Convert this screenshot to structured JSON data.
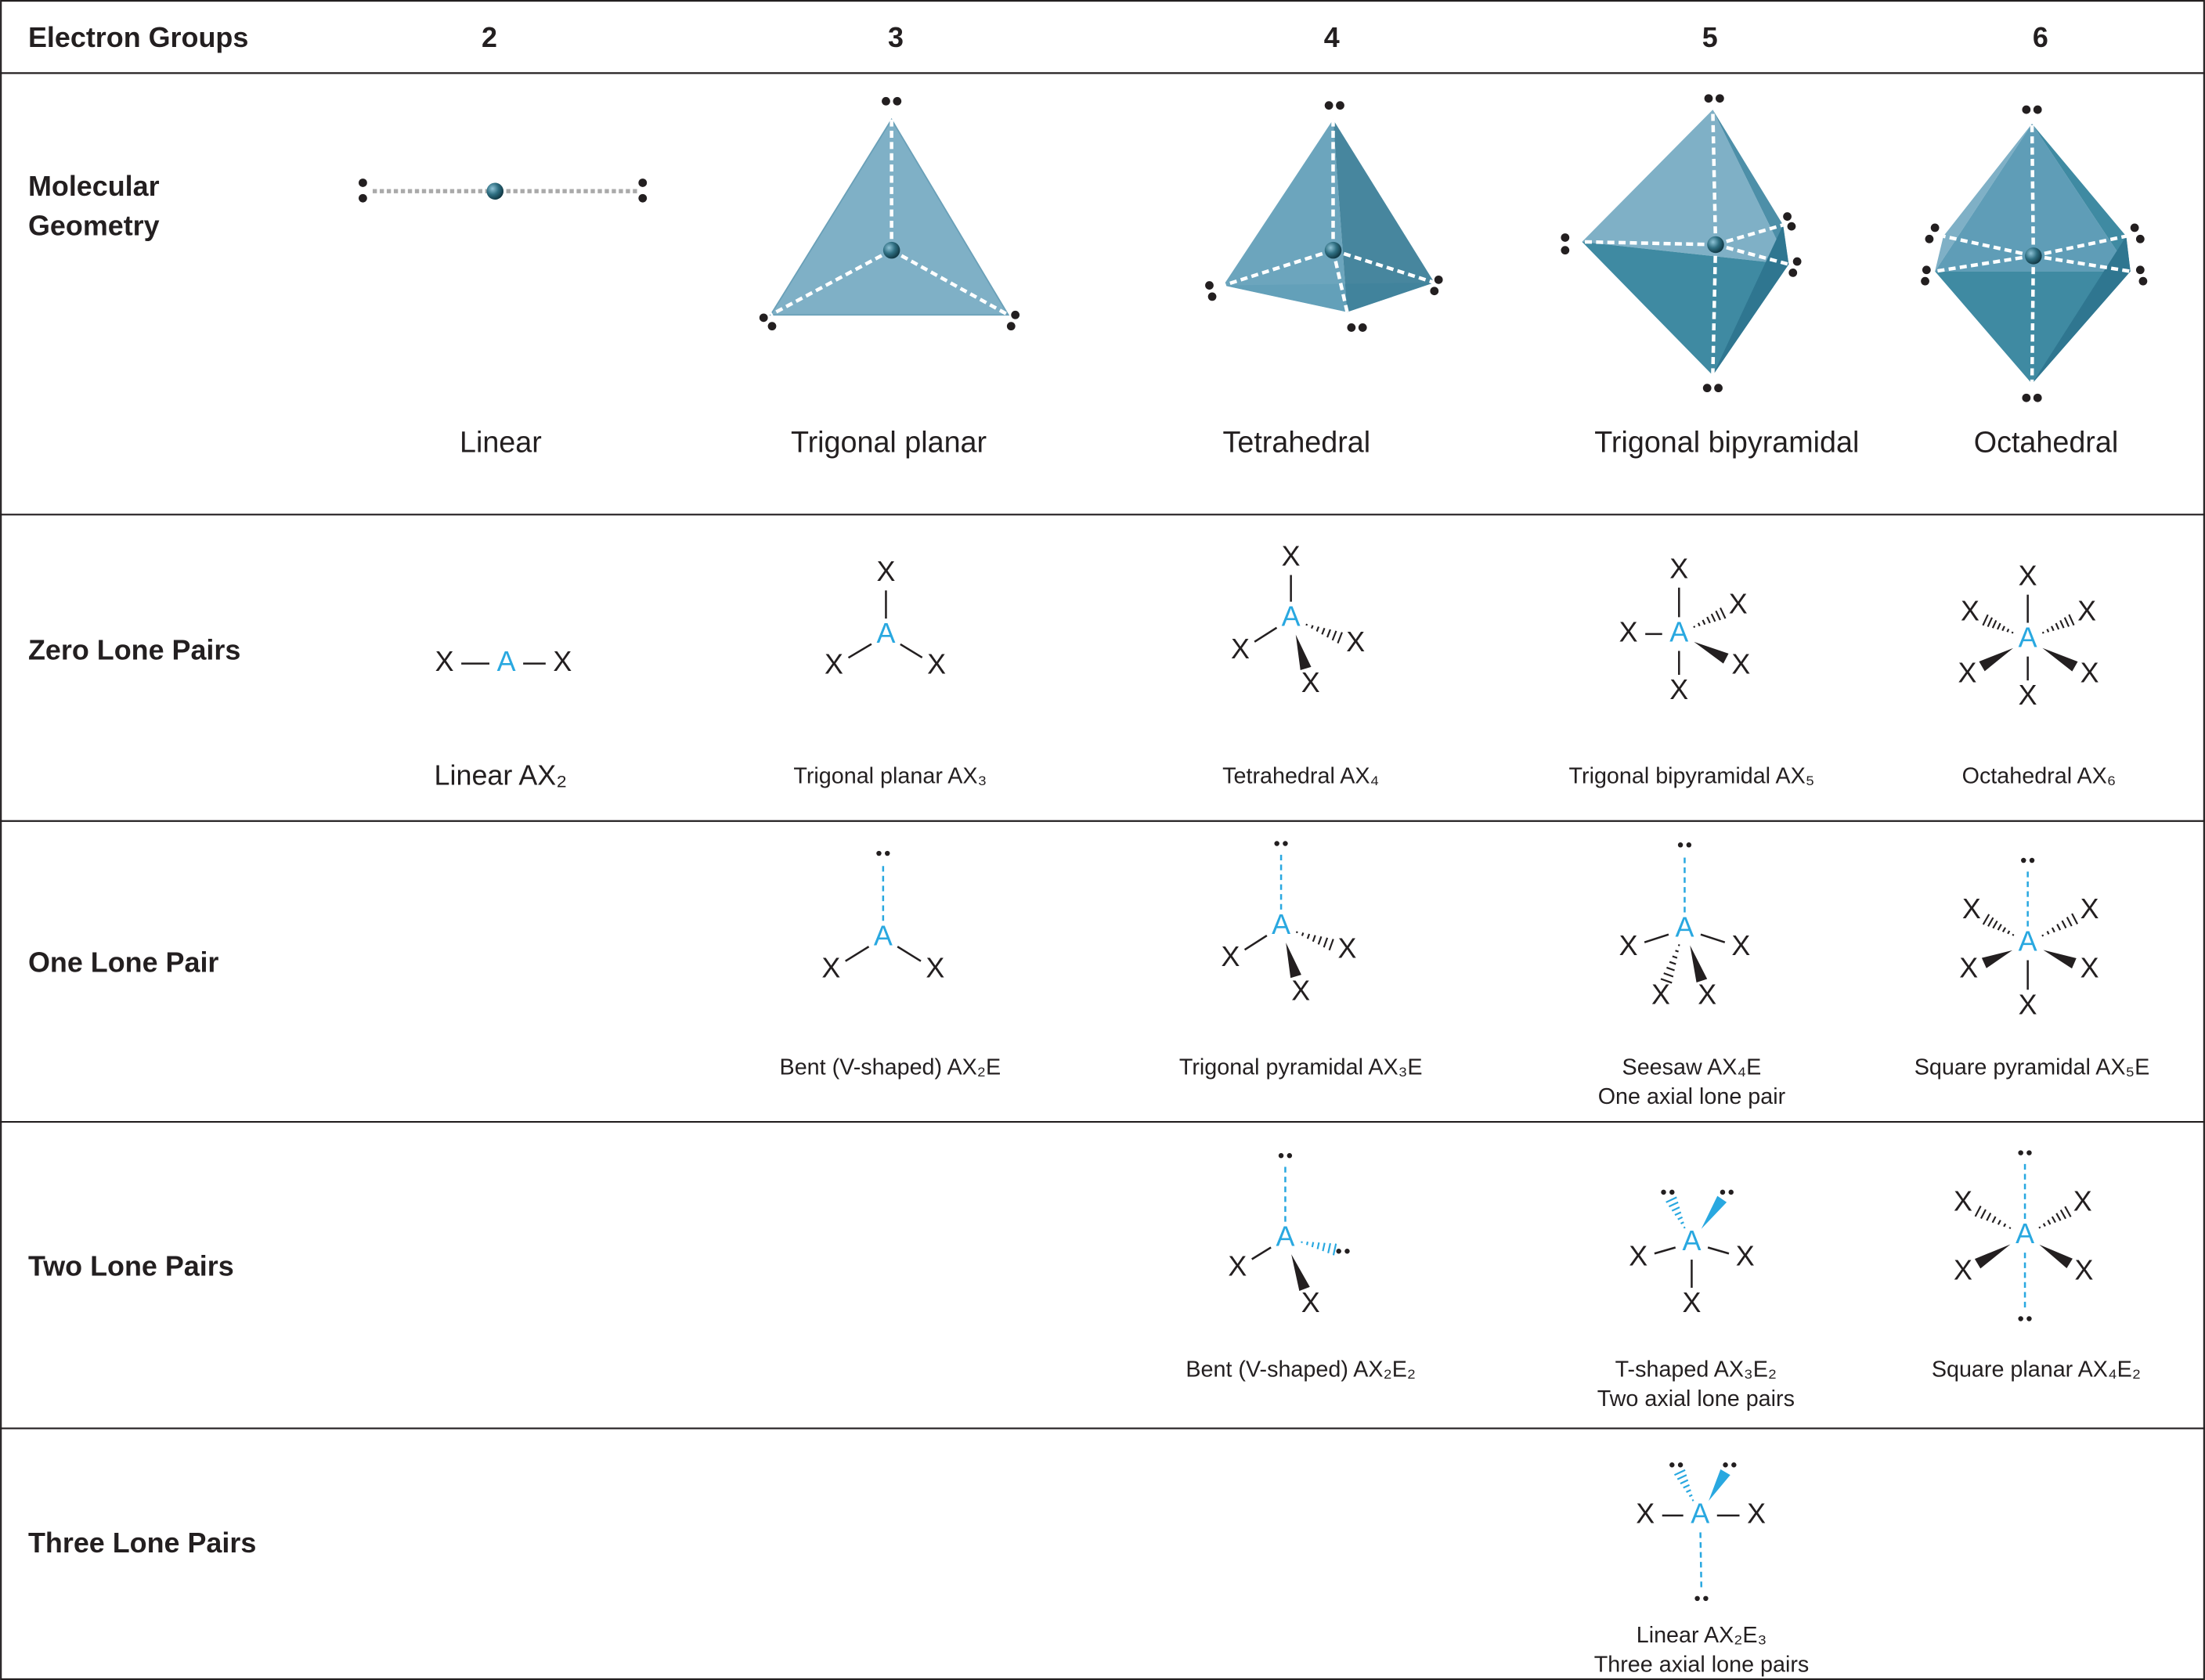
{
  "header": {
    "label": "Electron Groups",
    "columns": [
      "2",
      "3",
      "4",
      "5",
      "6"
    ]
  },
  "atom_labels": {
    "central": "A",
    "ligand": "X"
  },
  "rows": [
    {
      "label": [
        "Molecular",
        "Geometry"
      ],
      "cells": [
        [
          "Linear"
        ],
        [
          "Trigonal planar"
        ],
        [
          "Tetrahedral"
        ],
        [
          "Trigonal bipyramidal"
        ],
        [
          "Octahedral"
        ]
      ]
    },
    {
      "label": [
        "Zero Lone Pairs"
      ],
      "cells": [
        [
          "Linear AX₂"
        ],
        [
          "Trigonal planar AX₃"
        ],
        [
          "Tetrahedral AX₄"
        ],
        [
          "Trigonal bipyramidal AX₅"
        ],
        [
          "Octahedral AX₆"
        ]
      ]
    },
    {
      "label": [
        "One Lone Pair"
      ],
      "cells": [
        null,
        [
          "Bent (V-shaped) AX₂E"
        ],
        [
          "Trigonal pyramidal AX₃E"
        ],
        [
          "Seesaw AX₄E",
          "One axial lone pair"
        ],
        [
          "Square pyramidal AX₅E"
        ]
      ]
    },
    {
      "label": [
        "Two Lone Pairs"
      ],
      "cells": [
        null,
        null,
        [
          "Bent (V-shaped) AX₂E₂"
        ],
        [
          "T-shaped AX₃E₂",
          "Two axial lone pairs"
        ],
        [
          "Square planar AX₄E₂"
        ]
      ]
    },
    {
      "label": [
        "Three Lone Pairs"
      ],
      "cells": [
        null,
        null,
        null,
        [
          "Linear AX₂E₃",
          "Three axial lone pairs"
        ],
        null
      ]
    }
  ]
}
